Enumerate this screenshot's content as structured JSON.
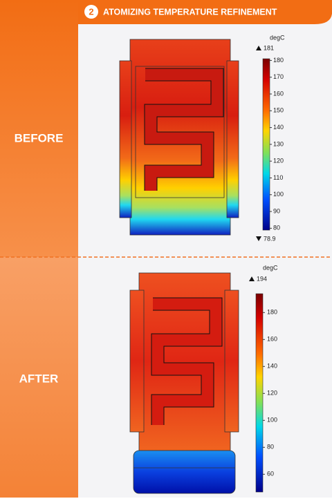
{
  "header": {
    "step": "2",
    "title": "ATOMIZING TEMPERATURE REFINEMENT"
  },
  "panels": [
    {
      "label": "BEFORE",
      "unit": "degC",
      "max": 181,
      "min": 78.9,
      "ticks": [
        80,
        90,
        100,
        110,
        120,
        130,
        140,
        150,
        160,
        170,
        180
      ]
    },
    {
      "label": "AFTER",
      "unit": "degC",
      "max": 194,
      "ticks": [
        60,
        80,
        100,
        120,
        140,
        160,
        180
      ]
    }
  ]
}
